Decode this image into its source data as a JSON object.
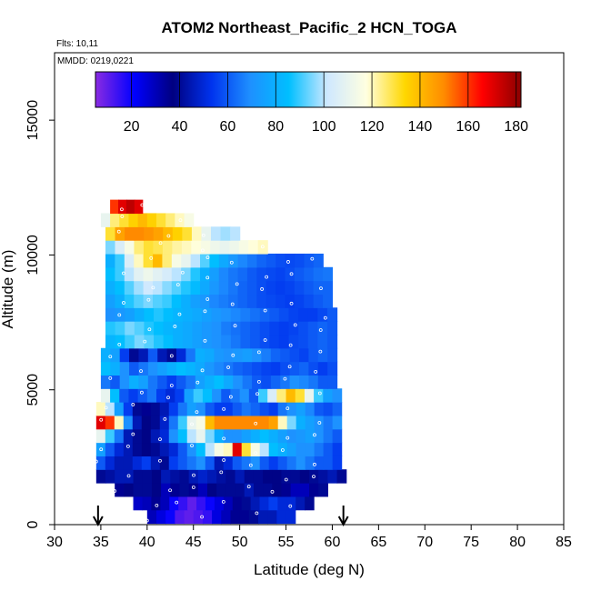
{
  "chart_data": {
    "type": "heatmap",
    "title": "ATOM2 Northeast_Pacific_2 HCN_TOGA",
    "flights_label": "Flts: 10,11",
    "mmdd_label": "MMDD: 0219,0221",
    "xlabel": "Latitude (deg N)",
    "ylabel": "Altitude (m)",
    "xlim": [
      30,
      85
    ],
    "ylim": [
      0,
      17500
    ],
    "x_ticks": [
      "30",
      "35",
      "40",
      "45",
      "50",
      "55",
      "60",
      "65",
      "70",
      "75",
      "80",
      "85"
    ],
    "y_ticks": [
      "0",
      "5000",
      "10000",
      "15000"
    ],
    "colorbar": {
      "range": [
        5,
        182
      ],
      "ticks": [
        "20",
        "40",
        "60",
        "80",
        "100",
        "120",
        "140",
        "160",
        "180"
      ],
      "stops": [
        "#8a2be2",
        "#0000ff",
        "#000080",
        "#0033ee",
        "#1e90ff",
        "#00bfff",
        "#cfe8ff",
        "#ffffe0",
        "#ffd700",
        "#ff8c00",
        "#ff0000",
        "#8b0000"
      ]
    },
    "arrows_lat": [
      34.7,
      61.2
    ],
    "rows": [
      {
        "alt": 300,
        "x0": 40.0,
        "x1": 56.0,
        "v": [
          30,
          25,
          20,
          12,
          10,
          12,
          15,
          25,
          30,
          35,
          35,
          40,
          45,
          45,
          50,
          50
        ]
      },
      {
        "alt": 800,
        "x0": 38.5,
        "x1": 58.0,
        "v": [
          28,
          30,
          35,
          30,
          20,
          15,
          10,
          15,
          20,
          25,
          30,
          35,
          40,
          45,
          50,
          55,
          50,
          50,
          45,
          40
        ]
      },
      {
        "alt": 1300,
        "x0": 36.5,
        "x1": 59.5,
        "v": [
          35,
          38,
          40,
          40,
          38,
          30,
          35,
          40,
          35,
          30,
          38,
          40,
          40,
          40,
          45,
          40,
          40,
          38,
          35,
          30,
          30,
          35,
          40
        ]
      },
      {
        "alt": 1800,
        "x0": 34.5,
        "x1": 61.5,
        "v": [
          40,
          42,
          45,
          45,
          40,
          40,
          38,
          45,
          42,
          40,
          45,
          48,
          45,
          42,
          40,
          45,
          40,
          40,
          38,
          38,
          40,
          40,
          38,
          40,
          42,
          45,
          40
        ]
      },
      {
        "alt": 2300,
        "x0": 34.5,
        "x1": 61.0,
        "v": [
          60,
          50,
          45,
          45,
          50,
          55,
          45,
          40,
          55,
          60,
          65,
          70,
          60,
          45,
          50,
          60,
          65,
          70,
          60,
          55,
          60,
          65,
          70,
          65,
          60,
          60,
          55
        ]
      },
      {
        "alt": 2800,
        "x0": 34.5,
        "x1": 61.0,
        "v": [
          75,
          60,
          50,
          45,
          40,
          38,
          40,
          45,
          50,
          60,
          70,
          85,
          100,
          115,
          120,
          170,
          130,
          115,
          100,
          85,
          80,
          75,
          70,
          70,
          65,
          60,
          55
        ]
      },
      {
        "alt": 3300,
        "x0": 34.5,
        "x1": 61.0,
        "v": [
          110,
          90,
          65,
          45,
          40,
          38,
          45,
          50,
          70,
          85,
          100,
          110,
          95,
          80,
          70,
          70,
          75,
          80,
          85,
          80,
          75,
          70,
          72,
          75,
          70,
          65,
          60
        ]
      },
      {
        "alt": 3800,
        "x0": 34.5,
        "x1": 61.0,
        "v": [
          170,
          160,
          120,
          70,
          45,
          38,
          40,
          48,
          65,
          90,
          110,
          115,
          140,
          150,
          150,
          150,
          150,
          150,
          150,
          145,
          120,
          95,
          80,
          75,
          70,
          65,
          70
        ]
      },
      {
        "alt": 4300,
        "x0": 34.5,
        "x1": 61.0,
        "v": [
          120,
          100,
          75,
          55,
          40,
          35,
          40,
          45,
          55,
          65,
          75,
          70,
          60,
          55,
          55,
          60,
          65,
          62,
          58,
          55,
          65,
          70,
          75,
          68,
          60,
          58,
          62
        ]
      },
      {
        "alt": 4800,
        "x0": 35.0,
        "x1": 61.0,
        "v": [
          110,
          85,
          60,
          55,
          60,
          65,
          55,
          50,
          55,
          75,
          90,
          85,
          70,
          60,
          65,
          70,
          60,
          90,
          105,
          125,
          140,
          130,
          110,
          90,
          75,
          70
        ]
      },
      {
        "alt": 5300,
        "x0": 35.0,
        "x1": 60.5,
        "v": [
          65,
          60,
          70,
          80,
          75,
          65,
          60,
          55,
          60,
          65,
          75,
          80,
          85,
          78,
          70,
          65,
          60,
          58,
          62,
          65,
          70,
          68,
          65,
          60,
          60
        ]
      },
      {
        "alt": 5800,
        "x0": 35.0,
        "x1": 60.5,
        "v": [
          85,
          80,
          70,
          60,
          65,
          70,
          75,
          80,
          85,
          82,
          78,
          72,
          68,
          65,
          62,
          60,
          58,
          56,
          55,
          58,
          60,
          62,
          58,
          55,
          58
        ]
      },
      {
        "alt": 6300,
        "x0": 35.0,
        "x1": 60.5,
        "v": [
          80,
          75,
          55,
          40,
          45,
          60,
          45,
          40,
          50,
          65,
          80,
          78,
          72,
          70,
          72,
          74,
          70,
          66,
          62,
          60,
          58,
          56,
          60,
          62,
          60
        ]
      },
      {
        "alt": 6800,
        "x0": 35.5,
        "x1": 60.5,
        "v": [
          82,
          85,
          90,
          95,
          92,
          88,
          85,
          80,
          78,
          75,
          72,
          70,
          68,
          65,
          62,
          60,
          58,
          56,
          55,
          57,
          58,
          60,
          62,
          60
        ]
      },
      {
        "alt": 7300,
        "x0": 35.5,
        "x1": 60.5,
        "v": [
          88,
          90,
          95,
          92,
          88,
          85,
          82,
          80,
          78,
          75,
          72,
          70,
          66,
          64,
          62,
          60,
          58,
          56,
          55,
          56,
          58,
          60,
          62,
          60
        ]
      },
      {
        "alt": 7800,
        "x0": 35.5,
        "x1": 60.5,
        "v": [
          70,
          72,
          75,
          80,
          85,
          88,
          85,
          82,
          80,
          78,
          75,
          72,
          70,
          68,
          66,
          64,
          62,
          60,
          58,
          56,
          55,
          55,
          57,
          60
        ]
      },
      {
        "alt": 8300,
        "x0": 35.5,
        "x1": 60.0,
        "v": [
          75,
          80,
          88,
          92,
          95,
          92,
          90,
          85,
          80,
          75,
          72,
          68,
          66,
          64,
          62,
          60,
          58,
          57,
          56,
          55,
          56,
          58,
          60,
          62
        ]
      },
      {
        "alt": 8800,
        "x0": 35.5,
        "x1": 60.0,
        "v": [
          80,
          85,
          92,
          98,
          102,
          100,
          96,
          92,
          88,
          84,
          78,
          72,
          68,
          65,
          62,
          60,
          58,
          56,
          55,
          56,
          58,
          60,
          62,
          62
        ]
      },
      {
        "alt": 9300,
        "x0": 35.5,
        "x1": 60.0,
        "v": [
          85,
          90,
          100,
          108,
          112,
          108,
          104,
          100,
          95,
          88,
          80,
          74,
          68,
          65,
          63,
          60,
          58,
          57,
          56,
          58,
          60,
          62,
          64,
          65
        ]
      },
      {
        "alt": 9800,
        "x0": 35.5,
        "x1": 59.0,
        "v": [
          80,
          90,
          105,
          120,
          130,
          140,
          125,
          115,
          110,
          100,
          92,
          85,
          78,
          72,
          68,
          65,
          62,
          60,
          58,
          57,
          58,
          60,
          62
        ]
      },
      {
        "alt": 10300,
        "x0": 35.5,
        "x1": 53.0,
        "v": [
          95,
          105,
          115,
          125,
          130,
          128,
          125,
          122,
          120,
          118,
          115,
          112,
          110,
          112,
          115,
          118,
          120
        ]
      },
      {
        "alt": 10800,
        "x0": 35.5,
        "x1": 50.0,
        "v": [
          130,
          145,
          150,
          150,
          148,
          145,
          140,
          135,
          130,
          120,
          110,
          100,
          98,
          100
        ]
      },
      {
        "alt": 11300,
        "x0": 35.0,
        "x1": 45.0,
        "v": [
          110,
          125,
          130,
          135,
          140,
          135,
          130,
          125,
          120,
          115
        ]
      },
      {
        "alt": 11800,
        "x0": 36.0,
        "x1": 39.5,
        "v": [
          160,
          170,
          175,
          170
        ]
      }
    ]
  }
}
